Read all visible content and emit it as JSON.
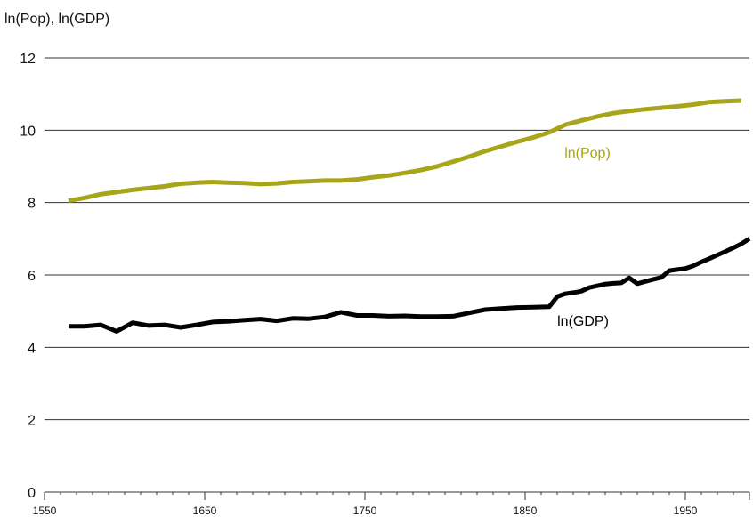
{
  "chart_data": {
    "type": "line",
    "ylabel": "ln(Pop), ln(GDP)",
    "xlim": [
      1550,
      1990
    ],
    "ylim": [
      0,
      12
    ],
    "yticks": [
      0,
      2,
      4,
      6,
      8,
      10,
      12
    ],
    "xticks": [
      1550,
      1650,
      1750,
      1850,
      1950
    ],
    "grid": "horizontal",
    "series": [
      {
        "name": "ln(Pop)",
        "color": "#a9a51b",
        "x": [
          1565,
          1575,
          1585,
          1595,
          1605,
          1615,
          1625,
          1635,
          1645,
          1655,
          1665,
          1675,
          1685,
          1695,
          1705,
          1715,
          1725,
          1735,
          1745,
          1755,
          1765,
          1775,
          1785,
          1795,
          1805,
          1815,
          1825,
          1835,
          1845,
          1855,
          1865,
          1875,
          1885,
          1895,
          1905,
          1915,
          1925,
          1935,
          1945,
          1955,
          1965,
          1975,
          1985
        ],
        "y": [
          8.05,
          8.13,
          8.23,
          8.29,
          8.35,
          8.4,
          8.45,
          8.52,
          8.55,
          8.57,
          8.55,
          8.54,
          8.51,
          8.53,
          8.57,
          8.59,
          8.61,
          8.61,
          8.64,
          8.7,
          8.75,
          8.82,
          8.9,
          9.0,
          9.13,
          9.27,
          9.42,
          9.55,
          9.68,
          9.8,
          9.94,
          10.15,
          10.27,
          10.38,
          10.47,
          10.53,
          10.58,
          10.62,
          10.66,
          10.71,
          10.78,
          10.8,
          10.82
        ]
      },
      {
        "name": "ln(GDP)",
        "color": "#000000",
        "x": [
          1565,
          1575,
          1585,
          1595,
          1605,
          1615,
          1625,
          1635,
          1645,
          1655,
          1665,
          1675,
          1685,
          1695,
          1705,
          1715,
          1725,
          1735,
          1745,
          1755,
          1765,
          1775,
          1785,
          1795,
          1805,
          1815,
          1825,
          1835,
          1845,
          1855,
          1865,
          1870,
          1875,
          1880,
          1885,
          1890,
          1895,
          1900,
          1905,
          1910,
          1915,
          1920,
          1925,
          1930,
          1935,
          1940,
          1945,
          1950,
          1955,
          1960,
          1965,
          1970,
          1975,
          1980,
          1985,
          1990
        ],
        "y": [
          4.58,
          4.58,
          4.62,
          4.44,
          4.68,
          4.6,
          4.62,
          4.55,
          4.62,
          4.7,
          4.72,
          4.75,
          4.78,
          4.73,
          4.8,
          4.79,
          4.84,
          4.97,
          4.88,
          4.88,
          4.86,
          4.87,
          4.85,
          4.85,
          4.86,
          4.95,
          5.04,
          5.07,
          5.1,
          5.11,
          5.12,
          5.4,
          5.48,
          5.51,
          5.55,
          5.65,
          5.7,
          5.75,
          5.77,
          5.78,
          5.92,
          5.76,
          5.82,
          5.88,
          5.93,
          6.12,
          6.15,
          6.18,
          6.25,
          6.36,
          6.45,
          6.55,
          6.65,
          6.75,
          6.86,
          7.0
        ]
      }
    ]
  }
}
